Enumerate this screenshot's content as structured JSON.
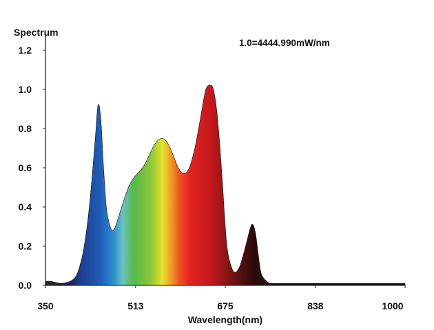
{
  "chart_data": {
    "type": "area",
    "title": "",
    "ylabel": "Spectrum",
    "xlabel": "Wavelength(nm)",
    "annotation": "1.0=4444.990mW/nm",
    "xlim": [
      350,
      1000
    ],
    "ylim": [
      0,
      1.2
    ],
    "xticks": [
      350,
      513,
      675,
      838,
      1000
    ],
    "xtick_labels": [
      "350",
      "513",
      "675",
      "838",
      "1000"
    ],
    "yticks": [
      0.0,
      0.2,
      0.4,
      0.6,
      0.8,
      1.0,
      1.2
    ],
    "ytick_labels": [
      "0.0",
      "0.2",
      "0.4",
      "0.6",
      "0.8",
      "1.0",
      "1.2"
    ],
    "grid": false,
    "fill": "visible-spectrum-gradient",
    "series": [
      {
        "x": [
          350,
          360,
          380,
          400,
          410,
          420,
          430,
          440,
          445,
          450,
          455,
          460,
          465,
          470,
          475,
          480,
          490,
          500,
          510,
          520,
          530,
          540,
          550,
          560,
          570,
          580,
          590,
          600,
          610,
          620,
          630,
          640,
          650,
          655,
          660,
          665,
          670,
          675,
          680,
          690,
          700,
          710,
          720,
          725,
          730,
          735,
          740,
          750,
          760,
          780,
          800,
          900,
          1000
        ],
        "y": [
          0.02,
          0.02,
          0.01,
          0.03,
          0.08,
          0.2,
          0.42,
          0.75,
          0.92,
          0.85,
          0.6,
          0.4,
          0.32,
          0.28,
          0.29,
          0.33,
          0.42,
          0.5,
          0.55,
          0.58,
          0.62,
          0.68,
          0.73,
          0.75,
          0.73,
          0.67,
          0.6,
          0.57,
          0.6,
          0.7,
          0.85,
          1.0,
          1.02,
          0.98,
          0.88,
          0.72,
          0.52,
          0.3,
          0.16,
          0.07,
          0.09,
          0.18,
          0.29,
          0.31,
          0.26,
          0.15,
          0.06,
          0.02,
          0.01,
          0.01,
          0.01,
          0.01,
          0.01
        ]
      }
    ]
  }
}
